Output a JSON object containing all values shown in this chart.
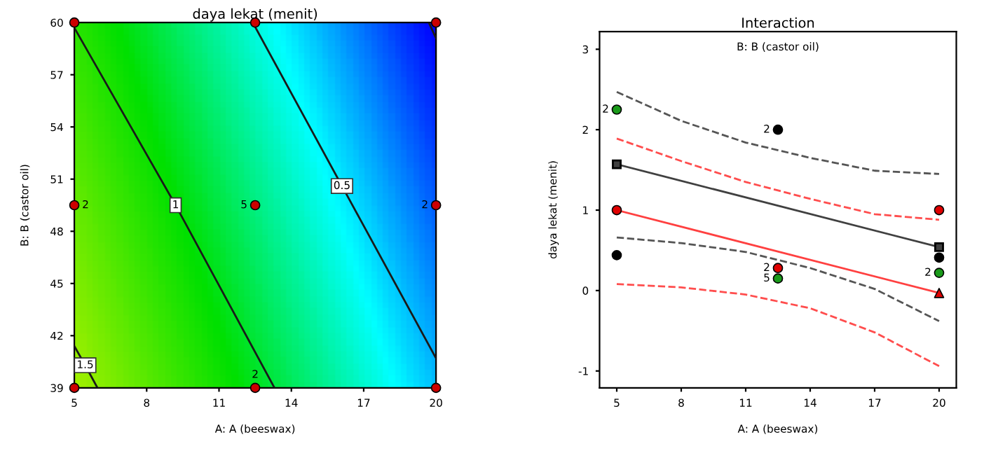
{
  "chart_data": [
    {
      "type": "line",
      "title": "daya lekat (menit)",
      "xlabel": "A: A (beeswax)",
      "ylabel": "B: B (castor oil)",
      "xlim": [
        5,
        20
      ],
      "ylim": [
        39,
        60
      ],
      "xticks": [
        5,
        8,
        11,
        14,
        17,
        20
      ],
      "yticks": [
        39,
        42,
        45,
        48,
        51,
        54,
        57,
        60
      ],
      "grid": false,
      "legend": false,
      "annotations": [
        {
          "text": "2",
          "x": 5,
          "y": 49.5
        },
        {
          "text": "5",
          "x": 12.5,
          "y": 49.5
        },
        {
          "text": "2",
          "x": 20,
          "y": 49.5
        },
        {
          "text": "2",
          "x": 12.5,
          "y": 39
        }
      ],
      "series": [
        {
          "name": "1",
          "color": "#1a1a1a",
          "x": [
            5,
            9.2,
            13.3
          ],
          "values": [
            59.7,
            49.5,
            39
          ]
        },
        {
          "name": "0.5",
          "color": "#1a1a1a",
          "x": [
            12.4,
            16.1,
            20
          ],
          "values": [
            60,
            50.6,
            40.7
          ]
        },
        {
          "name": "1.5",
          "color": "#1a1a1a",
          "x": [
            5,
            5.45,
            5.96
          ],
          "values": [
            41.4,
            40.3,
            39
          ]
        },
        {
          "color": "#1a1a1a",
          "x": [
            19.7,
            20
          ],
          "values": [
            60,
            59.1
          ]
        },
        {
          "type": "scatter",
          "color": "#cc0000",
          "marker": "circle",
          "x": [
            5,
            12.5,
            20,
            5,
            12.5,
            20,
            5,
            12.5,
            20
          ],
          "values": [
            60,
            60,
            60,
            49.5,
            49.5,
            49.5,
            39,
            39,
            39
          ]
        }
      ]
    },
    {
      "type": "line",
      "title": "Interaction",
      "xlabel": "A: A (beeswax)",
      "ylabel": "daya lekat (menit)",
      "annotations": [
        "B: B (castor oil)",
        {
          "text": "2",
          "x": 5,
          "y": 2.25
        },
        {
          "text": "5",
          "x": 12.5,
          "y": 0.15
        },
        {
          "text": "2",
          "x": 20,
          "y": 0.22
        },
        {
          "text": "2",
          "x": 12.5,
          "y": 2.0
        },
        {
          "text": "2",
          "x": 12.5,
          "y": 0.28
        }
      ],
      "xlim": [
        4.2,
        20.8
      ],
      "ylim": [
        -1.21,
        3.22
      ],
      "xticks": [
        5,
        8,
        11,
        14,
        17,
        20
      ],
      "yticks": [
        -1,
        0,
        1,
        2,
        3
      ],
      "grid": false,
      "legend": false,
      "series": [
        {
          "color": "#555555",
          "line_style": "dashed",
          "x": [
            5,
            8,
            11,
            14,
            17,
            20
          ],
          "values": [
            2.47,
            2.11,
            1.84,
            1.65,
            1.49,
            1.45
          ]
        },
        {
          "color": "#555555",
          "line_style": "dashed",
          "x": [
            5,
            8,
            11,
            14,
            17,
            20
          ],
          "values": [
            0.66,
            0.59,
            0.48,
            0.28,
            0.02,
            -0.38
          ]
        },
        {
          "color": "#ff4d4d",
          "line_style": "dashed",
          "x": [
            5,
            8,
            11,
            14,
            17,
            20
          ],
          "values": [
            1.89,
            1.61,
            1.35,
            1.14,
            0.95,
            0.88
          ]
        },
        {
          "color": "#ff4d4d",
          "line_style": "dashed",
          "x": [
            5,
            8,
            11,
            14,
            17,
            20
          ],
          "values": [
            0.08,
            0.04,
            -0.05,
            -0.22,
            -0.52,
            -0.94
          ]
        },
        {
          "color": "#404040",
          "line_style": "solid",
          "marker": "square",
          "x": [
            5,
            20
          ],
          "values": [
            1.57,
            0.54
          ]
        },
        {
          "color": "#ff4040",
          "line_style": "solid",
          "x": [
            5,
            20
          ],
          "values": [
            1.0,
            -0.03
          ]
        },
        {
          "type": "scatter",
          "color": "#e00000",
          "marker": "triangle",
          "x": [
            20
          ],
          "values": [
            -0.03
          ]
        },
        {
          "type": "scatter",
          "color": "#1a9a1a",
          "marker": "circle",
          "x": [
            5,
            12.5,
            20
          ],
          "values": [
            2.25,
            0.15,
            0.22
          ]
        },
        {
          "type": "scatter",
          "color": "#000000",
          "marker": "circle",
          "x": [
            5,
            12.5,
            20
          ],
          "values": [
            0.44,
            2.0,
            0.41
          ]
        },
        {
          "type": "scatter",
          "color": "#e00000",
          "marker": "circle",
          "x": [
            5,
            12.5,
            20
          ],
          "values": [
            1.0,
            0.28,
            1.0
          ]
        }
      ]
    }
  ]
}
